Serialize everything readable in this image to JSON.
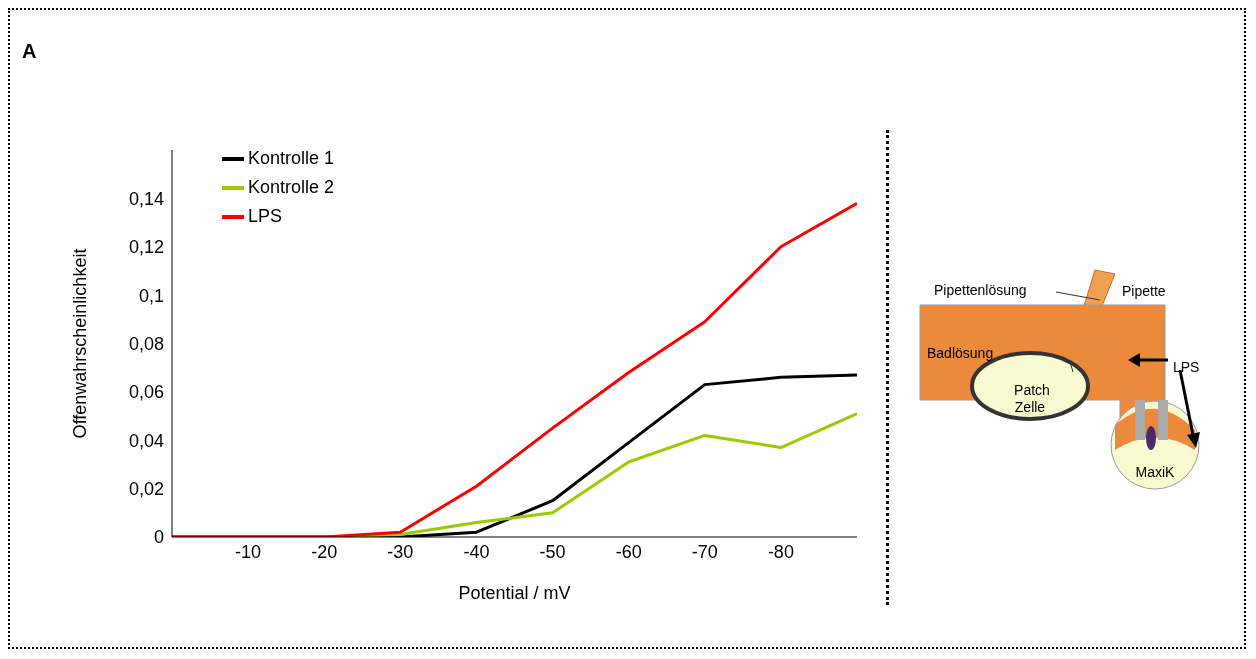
{
  "chart_data": {
    "type": "line",
    "xlabel": "Potential / mV",
    "ylabel": "Offenwahrscheinlichkeit",
    "x": [
      0,
      -10,
      -20,
      -30,
      -40,
      -50,
      -60,
      -70,
      -80,
      -90
    ],
    "series": [
      {
        "name": "Kontrolle 1",
        "color": "#000000",
        "values": [
          0,
          0,
          0,
          0,
          0.002,
          0.015,
          0.039,
          0.063,
          0.066,
          0.067
        ]
      },
      {
        "name": "Kontrolle 2",
        "color": "#99cc00",
        "values": [
          null,
          null,
          0,
          0.001,
          0.006,
          0.01,
          0.031,
          0.042,
          0.037,
          0.051
        ]
      },
      {
        "name": "LPS",
        "color": "#ff0000",
        "values": [
          0,
          0,
          0,
          0.002,
          0.021,
          0.045,
          0.068,
          0.089,
          0.12,
          0.138
        ]
      }
    ],
    "xlim": [
      0,
      -90
    ],
    "xticks": [
      -10,
      -20,
      -30,
      -40,
      -50,
      -60,
      -70,
      -80
    ],
    "ylim": [
      0,
      0.16
    ],
    "yticks": [
      {
        "value": 0,
        "label": "0"
      },
      {
        "value": 0.02,
        "label": "0,02"
      },
      {
        "value": 0.04,
        "label": "0,04"
      },
      {
        "value": 0.06,
        "label": "0,06"
      },
      {
        "value": 0.08,
        "label": "0,08"
      },
      {
        "value": 0.1,
        "label": "0,1"
      },
      {
        "value": 0.12,
        "label": "0,12"
      },
      {
        "value": 0.14,
        "label": "0,14"
      }
    ],
    "legend": "top left",
    "grid": false,
    "marker": "none",
    "line_style": "solid",
    "annotations": [
      "A",
      "Pipettenlösung",
      "Pipette",
      "Badlösung",
      "LPS",
      "Patch",
      "Zelle",
      "MaxiK"
    ]
  }
}
